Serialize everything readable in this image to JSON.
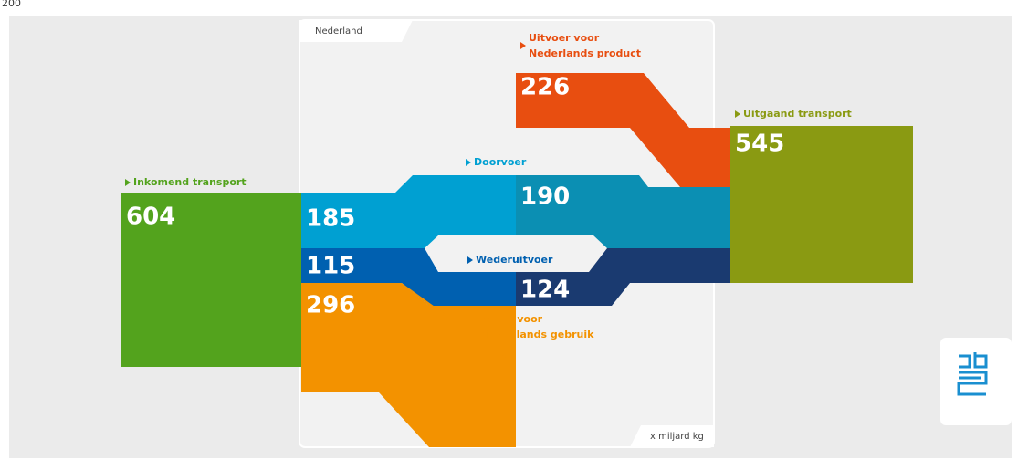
{
  "title": "200",
  "region": "Nederland",
  "unit": "x miljard kg",
  "flows": [
    {
      "label": [
        "Inkomend transport"
      ],
      "value": 604
    },
    {
      "label": [
        "Doorvoer"
      ],
      "value": 185,
      "value_out": 190
    },
    {
      "label": [
        "Wederuitvoer"
      ],
      "value": 115,
      "value_out": 124
    },
    {
      "label": [
        "Invoer voor",
        "binnenlands gebruik"
      ],
      "value": 296
    },
    {
      "label": [
        "Uitvoer voor",
        "Nederlands product"
      ],
      "value": 226
    },
    {
      "label": [
        "Uitgaand transport"
      ],
      "value": 545
    }
  ]
}
